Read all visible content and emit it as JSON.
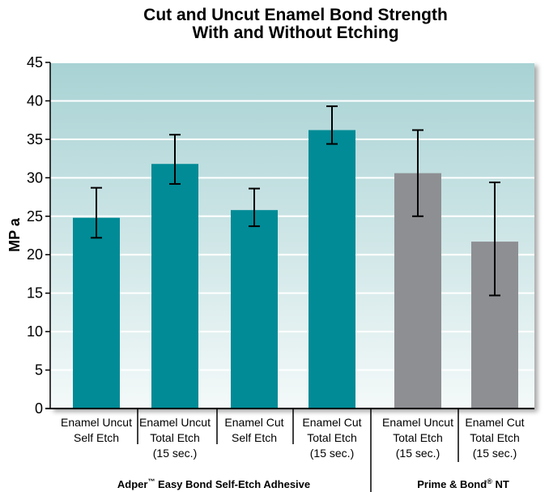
{
  "chart_data": {
    "type": "bar",
    "title_lines": [
      "Cut and Uncut Enamel Bond Strength",
      "With and Without Etching"
    ],
    "ylabel": "MP a",
    "xlabel": "",
    "ylim": [
      0,
      45
    ],
    "yticks": [
      0,
      5,
      10,
      15,
      20,
      25,
      30,
      35,
      40,
      45
    ],
    "grid": true,
    "categories": [
      [
        "Enamel Uncut",
        "Self Etch"
      ],
      [
        "Enamel Uncut",
        "Total Etch",
        "(15 sec.)"
      ],
      [
        "Enamel Cut",
        "Self Etch"
      ],
      [
        "Enamel Cut",
        "Total Etch",
        "(15 sec.)"
      ],
      [
        "Enamel Uncut",
        "Total Etch",
        "(15 sec.)"
      ],
      [
        "Enamel Cut",
        "Total Etch",
        "(15 sec.)"
      ]
    ],
    "values": [
      24.8,
      31.8,
      25.8,
      36.2,
      30.6,
      21.7
    ],
    "error_low": [
      22.2,
      29.2,
      23.7,
      34.4,
      25.0,
      14.7
    ],
    "error_high": [
      28.7,
      35.6,
      28.6,
      39.3,
      36.2,
      29.4
    ],
    "bar_colors": [
      "#008b96",
      "#008b96",
      "#008b96",
      "#008b96",
      "#8e8f93",
      "#8e8f93"
    ],
    "groups": [
      {
        "label": "Adper",
        "sup": "™",
        "label_rest": " Easy Bond Self-Etch Adhesive",
        "bars": [
          0,
          1,
          2,
          3
        ]
      },
      {
        "label": "Prime & Bond",
        "sup": "®",
        "label_rest": " NT",
        "bars": [
          4,
          5
        ]
      }
    ],
    "colors": {
      "teal_bar": "#008b96",
      "gray_bar": "#8e8f93",
      "plot_bg_top": "#a8d2d4",
      "plot_bg_bottom": "#f4f9f9"
    }
  }
}
